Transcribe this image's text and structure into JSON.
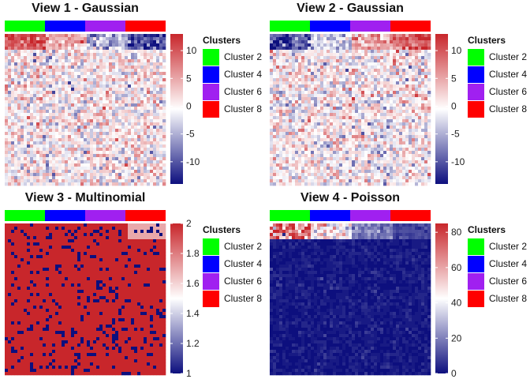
{
  "legend": {
    "title": "Clusters",
    "items": [
      {
        "label": "Cluster 2",
        "color": "#00FF00"
      },
      {
        "label": "Cluster 4",
        "color": "#0000FF"
      },
      {
        "label": "Cluster 6",
        "color": "#A020F0"
      },
      {
        "label": "Cluster 8",
        "color": "#FF0000"
      }
    ]
  },
  "palette": {
    "low": "#0d0f7e",
    "mid": "#ffffff",
    "high": "#c8262b"
  },
  "chart_data": [
    {
      "type": "heatmap",
      "title": "View 1 - Gaussian",
      "column_clusters": [
        "Cluster 2",
        "Cluster 4",
        "Cluster 6",
        "Cluster 8"
      ],
      "summary_row": [
        10,
        5,
        -5,
        -10
      ],
      "body": {
        "mean": 0.2,
        "noise": 3.5,
        "dominant": "white"
      },
      "colorbar": {
        "range": [
          -14,
          13
        ],
        "ticks": [
          10,
          5,
          0,
          -5,
          -10
        ]
      }
    },
    {
      "type": "heatmap",
      "title": "View 2 - Gaussian",
      "column_clusters": [
        "Cluster 2",
        "Cluster 4",
        "Cluster 6",
        "Cluster 8"
      ],
      "summary_row": [
        -10,
        -3,
        5,
        10
      ],
      "body": {
        "mean": 0,
        "noise": 3.5,
        "dominant": "white"
      },
      "colorbar": {
        "range": [
          -14,
          13
        ],
        "ticks": [
          10,
          5,
          0,
          -5,
          -10
        ]
      }
    },
    {
      "type": "heatmap",
      "title": "View 3 - Multinomial",
      "column_clusters": [
        "Cluster 2",
        "Cluster 4",
        "Cluster 6",
        "Cluster 8"
      ],
      "summary_row": [
        2,
        2,
        2,
        1.7
      ],
      "body": {
        "values": [
          1,
          2
        ],
        "share_high": 0.88,
        "dominant": "red"
      },
      "colorbar": {
        "range": [
          1,
          2
        ],
        "ticks": [
          2,
          1.8,
          1.6,
          1.4,
          1.2,
          1
        ]
      }
    },
    {
      "type": "heatmap",
      "title": "View 4 - Poisson",
      "column_clusters": [
        "Cluster 2",
        "Cluster 4",
        "Cluster 6",
        "Cluster 8"
      ],
      "summary_row": [
        70,
        45,
        20,
        10
      ],
      "body": {
        "mean": 1,
        "dominant": "navy"
      },
      "colorbar": {
        "range": [
          0,
          85
        ],
        "ticks": [
          80,
          60,
          40,
          20,
          0
        ]
      }
    }
  ]
}
